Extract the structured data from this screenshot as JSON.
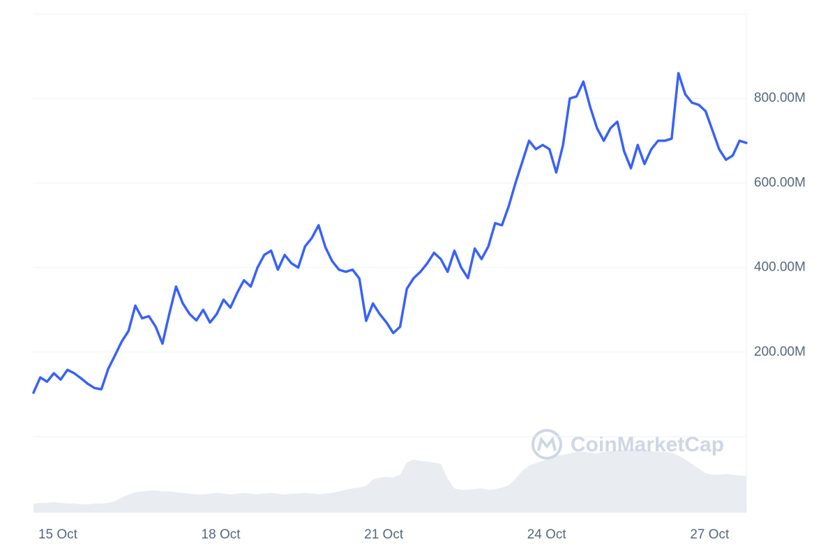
{
  "chart_data": {
    "type": "line",
    "watermark": "CoinMarketCap",
    "categories": [
      null,
      null,
      null,
      null,
      "15 Oct",
      null,
      null,
      null,
      null,
      null,
      null,
      null,
      null,
      null,
      null,
      null,
      null,
      null,
      null,
      null,
      null,
      null,
      null,
      null,
      null,
      null,
      null,
      null,
      "18 Oct",
      null,
      null,
      null,
      null,
      null,
      null,
      null,
      null,
      null,
      null,
      null,
      null,
      null,
      null,
      null,
      null,
      null,
      null,
      null,
      null,
      null,
      null,
      null,
      "21 Oct",
      null,
      null,
      null,
      null,
      null,
      null,
      null,
      null,
      null,
      null,
      null,
      null,
      null,
      null,
      null,
      null,
      null,
      null,
      null,
      null,
      null,
      null,
      null,
      "24 Oct",
      null,
      null,
      null,
      null,
      null,
      null,
      null,
      null,
      null,
      null,
      null,
      null,
      null,
      null,
      null,
      null,
      null,
      null,
      null,
      null,
      null,
      null,
      null,
      "27 Oct",
      null,
      null,
      null,
      null,
      null
    ],
    "series": [
      {
        "color": "#3861fb",
        "values": [
          104,
          140,
          130,
          150,
          135,
          158,
          150,
          138,
          125,
          115,
          112,
          160,
          192,
          225,
          250,
          310,
          280,
          285,
          260,
          220,
          290,
          355,
          315,
          290,
          275,
          300,
          270,
          290,
          324,
          305,
          340,
          370,
          355,
          400,
          430,
          440,
          395,
          430,
          410,
          400,
          450,
          470,
          500,
          448,
          415,
          395,
          390,
          395,
          374,
          274,
          315,
          290,
          270,
          245,
          260,
          350,
          375,
          390,
          410,
          435,
          420,
          390,
          440,
          400,
          375,
          445,
          420,
          450,
          505,
          500,
          545,
          600,
          650,
          700,
          680,
          690,
          680,
          625,
          690,
          800,
          805,
          840,
          780,
          730,
          700,
          730,
          745,
          675,
          635,
          690,
          645,
          680,
          700,
          700,
          705,
          860,
          810,
          790,
          785,
          770,
          725,
          680,
          655,
          665,
          700,
          695
        ]
      },
      {
        "color": "#e9ecf1",
        "axis": "y2",
        "values": [
          12,
          13,
          13,
          14,
          13,
          12,
          12,
          11,
          11,
          12,
          12,
          13,
          15,
          20,
          24,
          27,
          28,
          29,
          29,
          28,
          28,
          27,
          26,
          25,
          24,
          24,
          25,
          26,
          25,
          24,
          25,
          26,
          25,
          24,
          25,
          26,
          25,
          24,
          25,
          25,
          26,
          25,
          24,
          25,
          26,
          28,
          30,
          32,
          33,
          35,
          44,
          46,
          47,
          46,
          50,
          66,
          70,
          68,
          67,
          66,
          64,
          45,
          32,
          30,
          30,
          31,
          32,
          30,
          31,
          33,
          36,
          45,
          55,
          62,
          65,
          68,
          72,
          75,
          76,
          78,
          80,
          80,
          79,
          78,
          80,
          81,
          82,
          83,
          84,
          83,
          82,
          81,
          80,
          80,
          79,
          75,
          70,
          64,
          58,
          52,
          50,
          50,
          51,
          50,
          49,
          48
        ]
      }
    ],
    "ylim": [
      0,
      1000
    ],
    "yticks": [
      {
        "value": 200,
        "label": "200.00M"
      },
      {
        "value": 400,
        "label": "400.00M"
      },
      {
        "value": 600,
        "label": "600.00M"
      },
      {
        "value": 800,
        "label": "800.00M"
      }
    ],
    "y2lim": [
      0,
      100
    ],
    "grid": true
  }
}
